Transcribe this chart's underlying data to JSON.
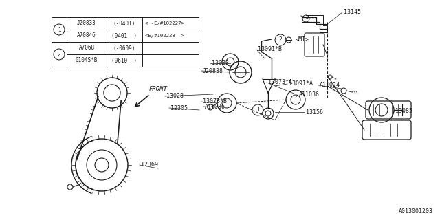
{
  "bg_color": "#ffffff",
  "line_color": "#1a1a1a",
  "text_color": "#1a1a1a",
  "fig_width": 6.4,
  "fig_height": 3.2,
  "dpi": 100,
  "watermark": "A013001203",
  "table_rows": [
    [
      "J20833",
      "(-0401)",
      "< -E/#102227>"
    ],
    [
      "A70846",
      "(0401- )",
      "<E/#102228- >"
    ],
    [
      "A7068",
      "(-0609)",
      ""
    ],
    [
      "0104S*B",
      "(0610- )",
      ""
    ]
  ]
}
